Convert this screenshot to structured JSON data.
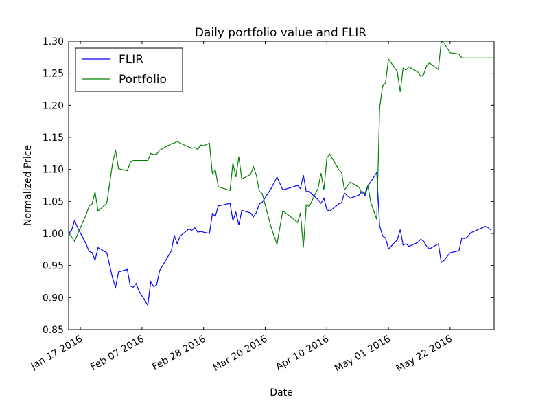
{
  "chart_data": {
    "type": "line",
    "title": "Daily portfolio value and FLIR",
    "xlabel": "Date",
    "ylabel": "Normalized Price",
    "xlim": [
      "2016-01-13",
      "2016-06-06"
    ],
    "ylim": [
      0.85,
      1.3
    ],
    "grid": false,
    "legend_position": "top-left",
    "x_ticks": [
      {
        "date": "2016-01-17",
        "label": "Jan 17 2016"
      },
      {
        "date": "2016-02-07",
        "label": "Feb 07 2016"
      },
      {
        "date": "2016-02-28",
        "label": "Feb 28 2016"
      },
      {
        "date": "2016-03-20",
        "label": "Mar 20 2016"
      },
      {
        "date": "2016-04-10",
        "label": "Apr 10 2016"
      },
      {
        "date": "2016-05-01",
        "label": "May 01 2016"
      },
      {
        "date": "2016-05-22",
        "label": "May 22 2016"
      }
    ],
    "y_ticks": [
      {
        "value": 0.85,
        "label": "0.85"
      },
      {
        "value": 0.9,
        "label": "0.90"
      },
      {
        "value": 0.95,
        "label": "0.95"
      },
      {
        "value": 1.0,
        "label": "1.00"
      },
      {
        "value": 1.05,
        "label": "1.05"
      },
      {
        "value": 1.1,
        "label": "1.10"
      },
      {
        "value": 1.15,
        "label": "1.15"
      },
      {
        "value": 1.2,
        "label": "1.20"
      },
      {
        "value": 1.25,
        "label": "1.25"
      },
      {
        "value": 1.3,
        "label": "1.30"
      }
    ],
    "series": [
      {
        "name": "FLIR",
        "color": "#0000ff",
        "points": [
          [
            "2016-01-13",
            1.0
          ],
          [
            "2016-01-14",
            1.005
          ],
          [
            "2016-01-15",
            1.02
          ],
          [
            "2016-01-16",
            1.01
          ],
          [
            "2016-01-19",
            0.983
          ],
          [
            "2016-01-20",
            0.972
          ],
          [
            "2016-01-21",
            0.97
          ],
          [
            "2016-01-22",
            0.958
          ],
          [
            "2016-01-23",
            0.978
          ],
          [
            "2016-01-26",
            0.97
          ],
          [
            "2016-01-28",
            0.93
          ],
          [
            "2016-01-29",
            0.916
          ],
          [
            "2016-01-30",
            0.94
          ],
          [
            "2016-02-02",
            0.944
          ],
          [
            "2016-02-03",
            0.918
          ],
          [
            "2016-02-04",
            0.916
          ],
          [
            "2016-02-05",
            0.922
          ],
          [
            "2016-02-06",
            0.91
          ],
          [
            "2016-02-09",
            0.888
          ],
          [
            "2016-02-10",
            0.925
          ],
          [
            "2016-02-11",
            0.917
          ],
          [
            "2016-02-12",
            0.92
          ],
          [
            "2016-02-13",
            0.942
          ],
          [
            "2016-02-17",
            0.973
          ],
          [
            "2016-02-18",
            0.997
          ],
          [
            "2016-02-19",
            0.984
          ],
          [
            "2016-02-20",
            0.996
          ],
          [
            "2016-02-23",
            1.007
          ],
          [
            "2016-02-24",
            1.005
          ],
          [
            "2016-02-25",
            1.009
          ],
          [
            "2016-02-26",
            1.002
          ],
          [
            "2016-02-27",
            1.003
          ],
          [
            "2016-03-01",
            1.0
          ],
          [
            "2016-03-02",
            1.031
          ],
          [
            "2016-03-03",
            1.027
          ],
          [
            "2016-03-04",
            1.043
          ],
          [
            "2016-03-08",
            1.047
          ],
          [
            "2016-03-09",
            1.02
          ],
          [
            "2016-03-10",
            1.033
          ],
          [
            "2016-03-11",
            1.013
          ],
          [
            "2016-03-12",
            1.036
          ],
          [
            "2016-03-15",
            1.032
          ],
          [
            "2016-03-16",
            1.026
          ],
          [
            "2016-03-17",
            1.033
          ],
          [
            "2016-03-18",
            1.046
          ],
          [
            "2016-03-19",
            1.049
          ],
          [
            "2016-03-22",
            1.07
          ],
          [
            "2016-03-24",
            1.088
          ],
          [
            "2016-03-26",
            1.068
          ],
          [
            "2016-03-29",
            1.072
          ],
          [
            "2016-03-31",
            1.075
          ],
          [
            "2016-04-01",
            1.07
          ],
          [
            "2016-04-02",
            1.091
          ],
          [
            "2016-04-03",
            1.065
          ],
          [
            "2016-04-04",
            1.066
          ],
          [
            "2016-04-05",
            1.061
          ],
          [
            "2016-04-07",
            1.053
          ],
          [
            "2016-04-08",
            1.047
          ],
          [
            "2016-04-09",
            1.055
          ],
          [
            "2016-04-10",
            1.037
          ],
          [
            "2016-04-11",
            1.035
          ],
          [
            "2016-04-14",
            1.046
          ],
          [
            "2016-04-15",
            1.048
          ],
          [
            "2016-04-16",
            1.063
          ],
          [
            "2016-04-18",
            1.055
          ],
          [
            "2016-04-21",
            1.06
          ],
          [
            "2016-04-22",
            1.066
          ],
          [
            "2016-04-23",
            1.059
          ],
          [
            "2016-04-24",
            1.074
          ],
          [
            "2016-04-27",
            1.095
          ],
          [
            "2016-04-28",
            1.012
          ],
          [
            "2016-04-29",
            0.996
          ],
          [
            "2016-04-30",
            0.993
          ],
          [
            "2016-05-01",
            0.976
          ],
          [
            "2016-05-04",
            0.99
          ],
          [
            "2016-05-05",
            1.006
          ],
          [
            "2016-05-06",
            0.982
          ],
          [
            "2016-05-07",
            0.984
          ],
          [
            "2016-05-08",
            0.98
          ],
          [
            "2016-05-11",
            0.986
          ],
          [
            "2016-05-12",
            0.991
          ],
          [
            "2016-05-13",
            0.988
          ],
          [
            "2016-05-14",
            0.98
          ],
          [
            "2016-05-15",
            0.976
          ],
          [
            "2016-05-18",
            0.984
          ],
          [
            "2016-05-19",
            0.955
          ],
          [
            "2016-05-20",
            0.958
          ],
          [
            "2016-05-22",
            0.97
          ],
          [
            "2016-05-25",
            0.973
          ],
          [
            "2016-05-26",
            0.993
          ],
          [
            "2016-05-27",
            0.992
          ],
          [
            "2016-05-28",
            0.995
          ],
          [
            "2016-05-29",
            1.001
          ],
          [
            "2016-06-03",
            1.011
          ],
          [
            "2016-06-04",
            1.009
          ],
          [
            "2016-06-05",
            1.005
          ]
        ]
      },
      {
        "name": "Portfolio",
        "color": "#008000",
        "points": [
          [
            "2016-01-13",
            1.0
          ],
          [
            "2016-01-14",
            0.995
          ],
          [
            "2016-01-15",
            0.988
          ],
          [
            "2016-01-16",
            0.998
          ],
          [
            "2016-01-19",
            1.03
          ],
          [
            "2016-01-20",
            1.043
          ],
          [
            "2016-01-21",
            1.046
          ],
          [
            "2016-01-22",
            1.065
          ],
          [
            "2016-01-23",
            1.035
          ],
          [
            "2016-01-26",
            1.047
          ],
          [
            "2016-01-28",
            1.11
          ],
          [
            "2016-01-29",
            1.13
          ],
          [
            "2016-01-30",
            1.101
          ],
          [
            "2016-02-02",
            1.098
          ],
          [
            "2016-02-03",
            1.111
          ],
          [
            "2016-02-04",
            1.114
          ],
          [
            "2016-02-09",
            1.114
          ],
          [
            "2016-02-10",
            1.125
          ],
          [
            "2016-02-11",
            1.123
          ],
          [
            "2016-02-12",
            1.124
          ],
          [
            "2016-02-13",
            1.13
          ],
          [
            "2016-02-17",
            1.14
          ],
          [
            "2016-02-18",
            1.141
          ],
          [
            "2016-02-19",
            1.144
          ],
          [
            "2016-02-20",
            1.141
          ],
          [
            "2016-02-23",
            1.135
          ],
          [
            "2016-02-24",
            1.133
          ],
          [
            "2016-02-25",
            1.134
          ],
          [
            "2016-02-26",
            1.131
          ],
          [
            "2016-02-27",
            1.138
          ],
          [
            "2016-02-28",
            1.137
          ],
          [
            "2016-03-01",
            1.141
          ],
          [
            "2016-03-02",
            1.093
          ],
          [
            "2016-03-03",
            1.099
          ],
          [
            "2016-03-04",
            1.073
          ],
          [
            "2016-03-08",
            1.067
          ],
          [
            "2016-03-09",
            1.11
          ],
          [
            "2016-03-10",
            1.088
          ],
          [
            "2016-03-11",
            1.12
          ],
          [
            "2016-03-12",
            1.085
          ],
          [
            "2016-03-15",
            1.092
          ],
          [
            "2016-03-16",
            1.104
          ],
          [
            "2016-03-17",
            1.09
          ],
          [
            "2016-03-18",
            1.066
          ],
          [
            "2016-03-19",
            1.062
          ],
          [
            "2016-03-22",
            1.01
          ],
          [
            "2016-03-24",
            0.983
          ],
          [
            "2016-03-25",
            1.01
          ],
          [
            "2016-03-26",
            1.035
          ],
          [
            "2016-03-29",
            1.025
          ],
          [
            "2016-03-31",
            1.017
          ],
          [
            "2016-04-01",
            1.032
          ],
          [
            "2016-04-02",
            0.978
          ],
          [
            "2016-04-03",
            1.045
          ],
          [
            "2016-04-04",
            1.042
          ],
          [
            "2016-04-05",
            1.052
          ],
          [
            "2016-04-07",
            1.07
          ],
          [
            "2016-04-08",
            1.094
          ],
          [
            "2016-04-09",
            1.068
          ],
          [
            "2016-04-10",
            1.118
          ],
          [
            "2016-04-11",
            1.124
          ],
          [
            "2016-04-14",
            1.1
          ],
          [
            "2016-04-15",
            1.095
          ],
          [
            "2016-04-16",
            1.068
          ],
          [
            "2016-04-18",
            1.08
          ],
          [
            "2016-04-21",
            1.072
          ],
          [
            "2016-04-22",
            1.062
          ],
          [
            "2016-04-23",
            1.063
          ],
          [
            "2016-04-24",
            1.075
          ],
          [
            "2016-04-25",
            1.048
          ],
          [
            "2016-04-27",
            1.022
          ],
          [
            "2016-04-28",
            1.196
          ],
          [
            "2016-04-29",
            1.23
          ],
          [
            "2016-04-30",
            1.235
          ],
          [
            "2016-05-01",
            1.272
          ],
          [
            "2016-05-04",
            1.253
          ],
          [
            "2016-05-05",
            1.221
          ],
          [
            "2016-05-06",
            1.258
          ],
          [
            "2016-05-07",
            1.255
          ],
          [
            "2016-05-08",
            1.26
          ],
          [
            "2016-05-11",
            1.252
          ],
          [
            "2016-05-12",
            1.245
          ],
          [
            "2016-05-13",
            1.248
          ],
          [
            "2016-05-14",
            1.262
          ],
          [
            "2016-05-15",
            1.266
          ],
          [
            "2016-05-18",
            1.256
          ],
          [
            "2016-05-19",
            1.3
          ],
          [
            "2016-05-20",
            1.297
          ],
          [
            "2016-05-22",
            1.282
          ],
          [
            "2016-05-25",
            1.28
          ],
          [
            "2016-05-26",
            1.274
          ],
          [
            "2016-06-06",
            1.274
          ]
        ]
      }
    ]
  }
}
